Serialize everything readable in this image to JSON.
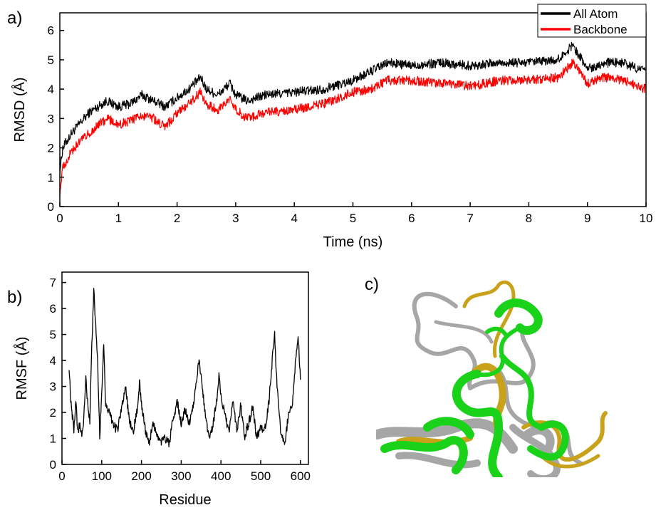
{
  "panels": {
    "a": "a)",
    "b": "b)",
    "c": "c)"
  },
  "chart_data": [
    {
      "type": "line",
      "panel": "a)",
      "xlabel": "Time (ns)",
      "ylabel": "RMSD (Å)",
      "xlim": [
        0,
        10
      ],
      "ylim": [
        0,
        6.6
      ],
      "xticks": [
        0,
        1,
        2,
        3,
        4,
        5,
        6,
        7,
        8,
        9,
        10
      ],
      "yticks": [
        0,
        1,
        2,
        3,
        4,
        5,
        6
      ],
      "grid": false,
      "legend": "top-right",
      "series": [
        {
          "name": "All Atom",
          "color": "#000000",
          "x": [
            0,
            0.05,
            0.2,
            0.5,
            0.8,
            1.0,
            1.2,
            1.4,
            1.6,
            1.8,
            2.0,
            2.2,
            2.4,
            2.5,
            2.7,
            2.9,
            3.0,
            3.2,
            3.5,
            4.0,
            4.5,
            5.0,
            5.3,
            5.6,
            6.0,
            6.5,
            7.0,
            7.5,
            8.0,
            8.5,
            8.75,
            9.0,
            9.3,
            9.6,
            10.0
          ],
          "y": [
            1.2,
            2.0,
            2.5,
            3.2,
            3.6,
            3.4,
            3.5,
            3.8,
            3.6,
            3.4,
            3.7,
            4.0,
            4.4,
            4.0,
            3.8,
            4.2,
            3.8,
            3.6,
            3.8,
            3.9,
            4.0,
            4.3,
            4.6,
            4.9,
            4.8,
            4.9,
            4.8,
            4.9,
            4.9,
            5.0,
            5.5,
            4.7,
            4.9,
            4.9,
            4.6
          ]
        },
        {
          "name": "Backbone",
          "color": "#ff0000",
          "x": [
            0,
            0.05,
            0.2,
            0.5,
            0.8,
            1.0,
            1.2,
            1.4,
            1.6,
            1.8,
            2.0,
            2.2,
            2.4,
            2.5,
            2.7,
            2.9,
            3.0,
            3.2,
            3.5,
            4.0,
            4.5,
            5.0,
            5.3,
            5.6,
            6.0,
            6.5,
            7.0,
            7.5,
            8.0,
            8.5,
            8.75,
            9.0,
            9.3,
            9.6,
            10.0
          ],
          "y": [
            0.5,
            1.3,
            1.9,
            2.5,
            3.0,
            2.8,
            2.9,
            3.1,
            3.0,
            2.7,
            3.2,
            3.5,
            3.9,
            3.5,
            3.3,
            3.7,
            3.3,
            3.0,
            3.2,
            3.3,
            3.5,
            3.9,
            4.0,
            4.3,
            4.3,
            4.2,
            4.1,
            4.3,
            4.3,
            4.4,
            4.9,
            4.2,
            4.4,
            4.3,
            4.0
          ]
        }
      ]
    },
    {
      "type": "line",
      "panel": "b)",
      "xlabel": "Residue",
      "ylabel": "RMSF (Å)",
      "xlim": [
        0,
        620
      ],
      "ylim": [
        0,
        7.4
      ],
      "xticks": [
        0,
        100,
        200,
        300,
        400,
        500,
        600
      ],
      "yticks": [
        0,
        1,
        2,
        3,
        4,
        5,
        6,
        7
      ],
      "grid": false,
      "series": [
        {
          "color": "#000000",
          "x": [
            18,
            22,
            30,
            35,
            40,
            45,
            50,
            55,
            60,
            65,
            70,
            75,
            80,
            85,
            90,
            95,
            100,
            105,
            110,
            120,
            130,
            140,
            150,
            160,
            170,
            180,
            190,
            195,
            200,
            210,
            220,
            230,
            240,
            250,
            260,
            270,
            280,
            290,
            300,
            310,
            320,
            330,
            340,
            345,
            350,
            360,
            370,
            380,
            390,
            395,
            400,
            410,
            420,
            430,
            440,
            450,
            460,
            470,
            480,
            490,
            500,
            510,
            520,
            530,
            535,
            540,
            545,
            550,
            560,
            570,
            580,
            590,
            595,
            600
          ],
          "y": [
            3.8,
            2.5,
            1.3,
            2.4,
            1.2,
            1.6,
            1.0,
            1.8,
            3.3,
            2.2,
            1.7,
            4.5,
            6.7,
            5.4,
            3.8,
            1.1,
            2.7,
            4.7,
            2.2,
            2.0,
            1.5,
            1.3,
            2.2,
            3.0,
            1.6,
            1.3,
            2.2,
            3.2,
            2.3,
            1.3,
            0.9,
            1.6,
            1.0,
            0.9,
            1.0,
            0.8,
            1.8,
            2.4,
            1.6,
            2.1,
            1.6,
            2.2,
            3.5,
            3.9,
            3.4,
            2.0,
            1.0,
            1.5,
            2.6,
            3.4,
            2.6,
            1.9,
            1.2,
            2.4,
            1.3,
            2.3,
            1.1,
            1.6,
            2.2,
            1.0,
            1.4,
            1.3,
            2.3,
            4.2,
            5.0,
            3.3,
            2.3,
            1.3,
            0.8,
            1.9,
            2.4,
            4.5,
            4.8,
            3.2
          ]
        }
      ]
    }
  ],
  "structure_image": {
    "colors": {
      "gray": "#a6a6a6",
      "green": "#1ad21a",
      "gold": "#c9a21b"
    }
  }
}
